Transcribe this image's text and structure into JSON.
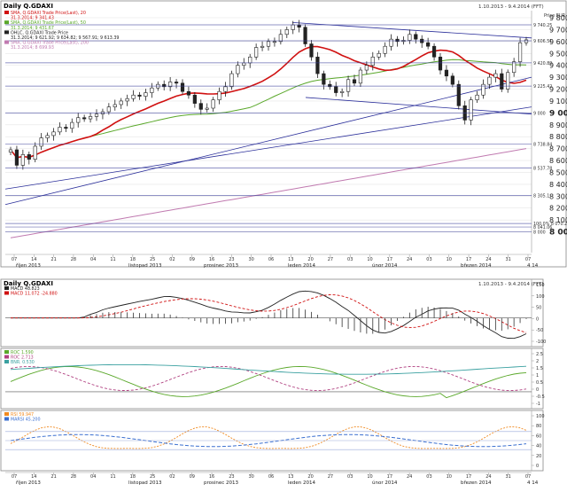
{
  "colors": {
    "price_bar": "#222222",
    "sma20": "#d01010",
    "sma50": "#5aa82a",
    "sma200": "#c07ab0",
    "trendline": "#2b2f9a",
    "hline": "#3a3f9a",
    "rsi": "#f08a20",
    "dmi": "#3a6fd0"
  },
  "chart_data": [
    {
      "type": "candlestick",
      "title": "Daily Q.GDAXI",
      "date_range": "1.10.2013 - 9.4.2014 (FFT)",
      "axis_unit": "Price EUR",
      "legend": [
        "SMA, Q.GDAXI Trade Price(Last), 20",
        "31.3.2014; 9 341.43",
        "SMA, Q.GDAXI Trade Price(Last), 50",
        "31.3.2014; 9 431.67",
        "OHLC, Q.GDAXI Trade Price",
        "31.3.2014; 9 621.92; 9 634.82; 9 567.91; 9 613.39",
        "SMA, Q.GDAXI Trade Price(Last), 200",
        "31.3.2014; 8 699.93"
      ],
      "ylim": [
        7900,
        9800
      ],
      "y_ticks": [
        "9 800",
        "9 700",
        "9 600",
        "9 500",
        "9 400",
        "9 300",
        "9 200",
        "9 100",
        "9 000",
        "8 900",
        "8 800",
        "8 700",
        "8 600",
        "8 500",
        "8 400",
        "8 300",
        "8 200",
        "8 100",
        "8 000"
      ],
      "level_labels": [
        {
          "label": "9 740.25",
          "value": 9740.25
        },
        {
          "label": "9 606.51",
          "value": 9606.51
        },
        {
          "label": "9 420.89",
          "value": 9420.89
        },
        {
          "label": "9 225.42",
          "value": 9225.42
        },
        {
          "label": "9 000",
          "value": 9000
        },
        {
          "label": "8 738.84",
          "value": 8738.84
        },
        {
          "label": "8 537.78",
          "value": 8537.78
        },
        {
          "label": "8 305.1",
          "value": 8305.1
        },
        {
          "label": "100.0% 8 070.28",
          "value": 8070.28
        },
        {
          "label": "8 041.06",
          "value": 8041.06
        },
        {
          "label": "8 000",
          "value": 8000
        }
      ],
      "x_day_ticks": [
        "07",
        "14",
        "21",
        "28",
        "04",
        "11",
        "18",
        "25",
        "02",
        "09",
        "16",
        "23",
        "30",
        "06",
        "13",
        "20",
        "27",
        "03",
        "10",
        "17",
        "24",
        "03",
        "10",
        "17",
        "24",
        "31",
        "07"
      ],
      "x_month_labels": [
        "říjen 2013",
        "listopad 2013",
        "prosinec 2013",
        "leden 2014",
        "únor 2014",
        "březen 2014",
        "4 14"
      ],
      "close_series": [
        8690,
        8560,
        8650,
        8610,
        8720,
        8790,
        8810,
        8840,
        8880,
        8870,
        8920,
        8960,
        8950,
        8970,
        8990,
        9010,
        9050,
        9070,
        9100,
        9120,
        9150,
        9140,
        9170,
        9210,
        9240,
        9220,
        9260,
        9250,
        9180,
        9150,
        9080,
        9030,
        9040,
        9110,
        9180,
        9220,
        9330,
        9400,
        9420,
        9470,
        9550,
        9560,
        9600,
        9600,
        9660,
        9700,
        9740,
        9720,
        9580,
        9470,
        9330,
        9240,
        9220,
        9170,
        9180,
        9280,
        9250,
        9360,
        9400,
        9470,
        9500,
        9560,
        9620,
        9600,
        9610,
        9660,
        9620,
        9590,
        9560,
        9470,
        9360,
        9310,
        9240,
        9060,
        8940,
        9110,
        9150,
        9240,
        9300,
        9330,
        9200,
        9340,
        9430,
        9590,
        9614
      ]
    },
    {
      "type": "line",
      "title": "MACD",
      "legend": [
        "MACD 48.823",
        "MACD 11.072 -24.880"
      ],
      "y_ticks": [
        "150",
        "100",
        "50",
        "0",
        "-50",
        "-100"
      ],
      "unit": "EUR"
    },
    {
      "type": "line",
      "title": "ROC",
      "legend": [
        "ROC 1.590",
        "ROC 2.713",
        "BNR. 0.530"
      ],
      "y_ticks": [
        "2.5",
        "2",
        "1.5",
        "1",
        "0.5",
        "0",
        "-0.5",
        "-1"
      ]
    },
    {
      "type": "line",
      "title": "RSI",
      "legend": [
        "RSI 59.947",
        "MARSI 45.200"
      ],
      "y_ticks": [
        "100",
        "80",
        "60",
        "40",
        "20",
        "0"
      ]
    }
  ]
}
